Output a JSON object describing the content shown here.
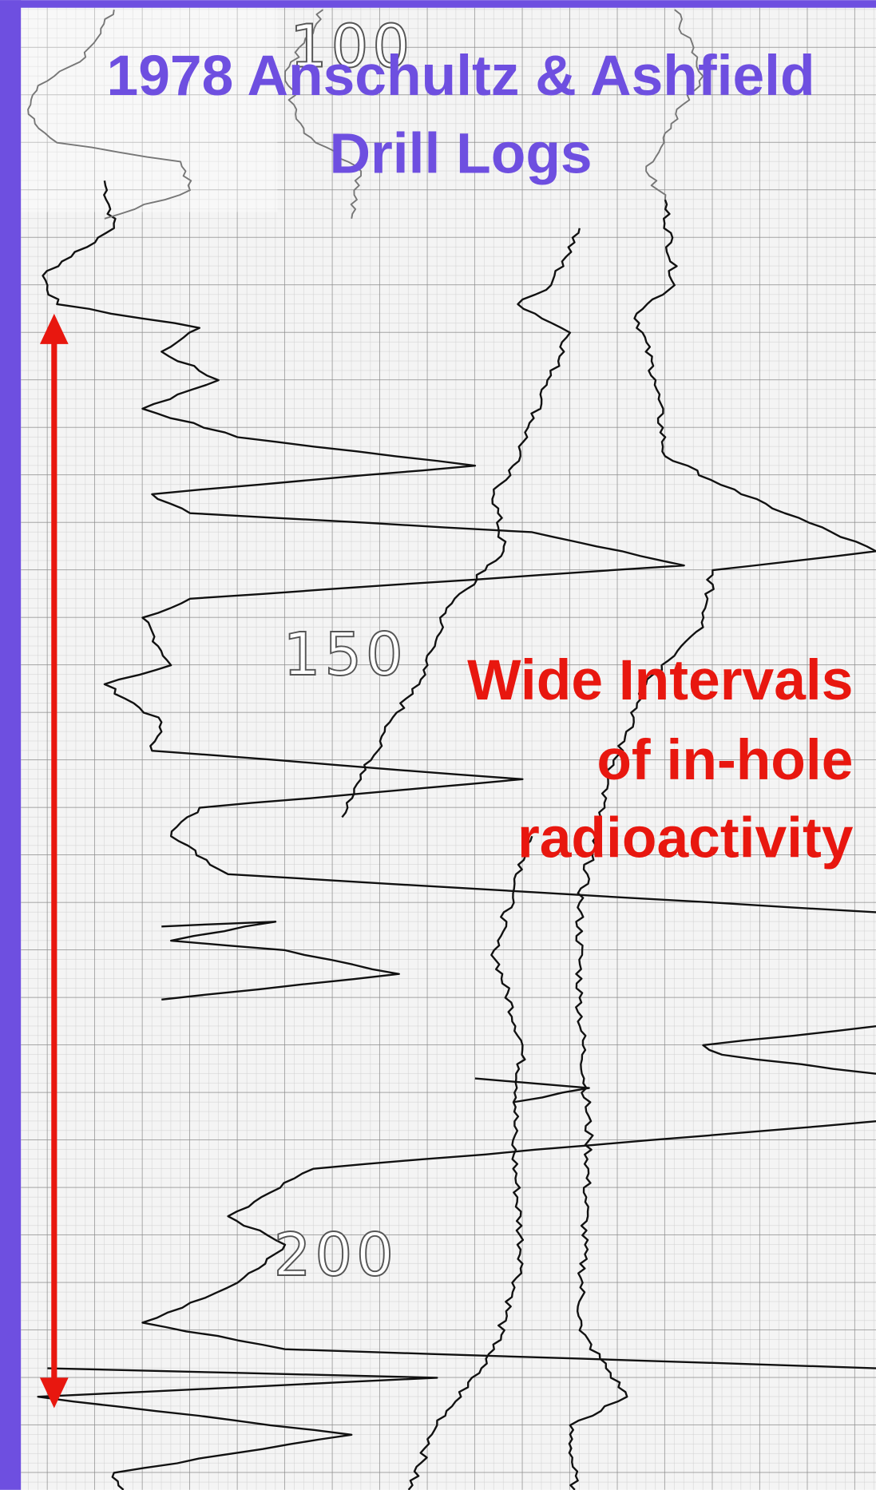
{
  "title": "1978 Anschultz & Ashfield Drill Logs",
  "depth_labels": [
    "100",
    "150",
    "200"
  ],
  "annotation": [
    "Wide Intervals",
    "of in-hole",
    "radioactivity"
  ]
}
